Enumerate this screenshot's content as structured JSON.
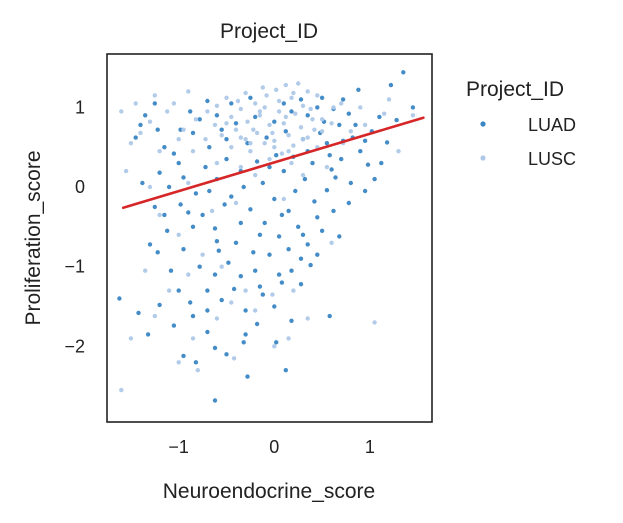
{
  "chart_data": {
    "type": "scatter",
    "title": "Project_ID",
    "xlabel": "Neuroendocrine_score",
    "ylabel": "Proliferation_score",
    "xlim": [
      -1.75,
      1.65
    ],
    "ylim": [
      -2.95,
      1.67
    ],
    "xticks": [
      -1,
      0,
      1
    ],
    "yticks": [
      -2,
      -1,
      0,
      1
    ],
    "xtick_labels": [
      "−1",
      "0",
      "1"
    ],
    "ytick_labels": [
      "−2",
      "−1",
      "0",
      "1"
    ],
    "grid": false,
    "legend": {
      "title": "Project_ID",
      "placement": "outside-right",
      "entries": [
        {
          "label": "LUAD",
          "color": "#3a86c4"
        },
        {
          "label": "LUSC",
          "color": "#adc8e8"
        }
      ]
    },
    "regression_line": {
      "color": "#d62728",
      "x": [
        -1.58,
        1.56
      ],
      "y": [
        -0.26,
        0.87
      ]
    },
    "series": [
      {
        "name": "LUAD",
        "color": "#3a86c4",
        "points": [
          [
            1.35,
            1.44
          ],
          [
            1.22,
            1.28
          ],
          [
            0.88,
            1.22
          ],
          [
            0.72,
            1.1
          ],
          [
            0.5,
            1.12
          ],
          [
            0.62,
            0.98
          ],
          [
            0.85,
            0.78
          ],
          [
            1.02,
            0.7
          ],
          [
            0.9,
            0.45
          ],
          [
            1.12,
            0.3
          ],
          [
            1.18,
            0.56
          ],
          [
            1.28,
            0.84
          ],
          [
            0.98,
            0.28
          ],
          [
            0.64,
            0.12
          ],
          [
            0.55,
            -0.04
          ],
          [
            0.78,
            -0.2
          ],
          [
            0.45,
            -0.38
          ],
          [
            0.5,
            -0.55
          ],
          [
            0.68,
            -0.62
          ],
          [
            0.35,
            -0.72
          ],
          [
            0.28,
            -0.9
          ],
          [
            0.18,
            -1.05
          ],
          [
            0.08,
            -1.2
          ],
          [
            0.28,
            -1.22
          ],
          [
            0.58,
            -1.62
          ],
          [
            0.18,
            -1.68
          ],
          [
            0.02,
            -1.95
          ],
          [
            -0.18,
            -1.72
          ],
          [
            -0.32,
            -1.95
          ],
          [
            -0.28,
            -2.38
          ],
          [
            0.12,
            -2.3
          ],
          [
            -0.62,
            -2.68
          ],
          [
            -0.82,
            -2.2
          ],
          [
            -0.95,
            -2.12
          ],
          [
            -0.62,
            -2.02
          ],
          [
            -0.7,
            -1.82
          ],
          [
            -0.85,
            -1.62
          ],
          [
            -1.05,
            -1.74
          ],
          [
            -1.2,
            -1.48
          ],
          [
            -1.32,
            -1.85
          ],
          [
            -1.42,
            -1.58
          ],
          [
            -1.62,
            -1.4
          ],
          [
            -1.08,
            -1.05
          ],
          [
            -1.22,
            -0.82
          ],
          [
            -1.3,
            -0.72
          ],
          [
            -1.12,
            -0.55
          ],
          [
            -1.25,
            -0.25
          ],
          [
            -1.38,
            0.05
          ],
          [
            -1.2,
            0.18
          ],
          [
            -1.05,
            0.42
          ],
          [
            -1.22,
            0.72
          ],
          [
            -1.35,
            0.9
          ],
          [
            -1.45,
            0.62
          ],
          [
            -1.25,
            1.05
          ],
          [
            -0.95,
            0.12
          ],
          [
            -0.82,
            -0.08
          ],
          [
            -0.75,
            -0.35
          ],
          [
            -0.9,
            -0.32
          ],
          [
            -0.62,
            -0.52
          ],
          [
            -0.58,
            -0.8
          ],
          [
            -0.48,
            -0.95
          ],
          [
            -0.62,
            -1.1
          ],
          [
            -0.42,
            -1.28
          ],
          [
            -0.55,
            -1.42
          ],
          [
            -0.3,
            -1.55
          ],
          [
            -0.12,
            -1.35
          ],
          [
            -0.2,
            -1.05
          ],
          [
            -0.05,
            -0.85
          ],
          [
            0.05,
            -0.62
          ],
          [
            -0.1,
            -0.45
          ],
          [
            -0.25,
            -0.28
          ],
          [
            0.0,
            -0.15
          ],
          [
            0.15,
            -0.3
          ],
          [
            0.22,
            -0.05
          ],
          [
            0.32,
            0.1
          ],
          [
            0.1,
            0.2
          ],
          [
            -0.12,
            0.05
          ],
          [
            -0.32,
            0.0
          ],
          [
            -0.45,
            -0.12
          ],
          [
            -0.6,
            0.1
          ],
          [
            -0.72,
            0.25
          ],
          [
            -0.5,
            0.35
          ],
          [
            -0.35,
            0.2
          ],
          [
            -0.18,
            0.32
          ],
          [
            0.02,
            0.4
          ],
          [
            0.2,
            0.38
          ],
          [
            0.4,
            0.3
          ],
          [
            0.58,
            0.4
          ],
          [
            0.72,
            0.58
          ],
          [
            0.48,
            0.68
          ],
          [
            0.3,
            0.6
          ],
          [
            0.12,
            0.7
          ],
          [
            -0.08,
            0.62
          ],
          [
            -0.28,
            0.55
          ],
          [
            -0.5,
            0.6
          ],
          [
            -0.68,
            0.5
          ],
          [
            -0.85,
            0.68
          ],
          [
            -0.78,
            0.85
          ],
          [
            -0.6,
            0.9
          ],
          [
            -0.4,
            0.8
          ],
          [
            -0.2,
            0.88
          ],
          [
            0.0,
            0.82
          ],
          [
            0.18,
            0.95
          ],
          [
            0.35,
            0.9
          ],
          [
            0.52,
            0.82
          ],
          [
            0.68,
            0.78
          ],
          [
            0.82,
            0.62
          ],
          [
            0.95,
            0.58
          ],
          [
            0.6,
            0.22
          ],
          [
            0.42,
            -0.18
          ],
          [
            0.25,
            -0.5
          ],
          [
            0.08,
            -0.35
          ],
          [
            -0.15,
            -0.6
          ],
          [
            -0.35,
            -0.45
          ],
          [
            -0.52,
            -0.22
          ],
          [
            -0.68,
            -0.05
          ],
          [
            -0.85,
            -0.5
          ],
          [
            -0.95,
            -0.78
          ],
          [
            -0.78,
            -1.0
          ],
          [
            -0.7,
            -1.3
          ],
          [
            -0.88,
            -1.45
          ],
          [
            -0.35,
            -1.12
          ],
          [
            -0.15,
            -1.25
          ],
          [
            0.05,
            -1.1
          ],
          [
            0.15,
            -0.78
          ],
          [
            0.3,
            -0.6
          ],
          [
            0.45,
            -0.85
          ],
          [
            0.62,
            -0.3
          ],
          [
            0.8,
            0.05
          ],
          [
            1.05,
            0.1
          ],
          [
            0.95,
            -0.05
          ],
          [
            -1.0,
            0.3
          ],
          [
            -1.15,
            0.5
          ],
          [
            -0.88,
            0.95
          ],
          [
            -0.7,
            1.08
          ],
          [
            -0.45,
            1.05
          ],
          [
            -0.25,
            1.12
          ],
          [
            0.1,
            1.05
          ],
          [
            0.28,
            1.1
          ],
          [
            0.45,
            1.0
          ],
          [
            0.78,
            0.92
          ],
          [
            1.1,
            0.88
          ],
          [
            1.45,
            1.0
          ],
          [
            -1.4,
            0.78
          ],
          [
            -0.98,
            0.72
          ],
          [
            -0.55,
            0.72
          ],
          [
            -0.05,
            0.25
          ],
          [
            0.35,
            0.45
          ],
          [
            -0.4,
            -0.7
          ],
          [
            -0.22,
            -0.82
          ],
          [
            0.38,
            -0.98
          ],
          [
            -0.6,
            -0.68
          ],
          [
            -0.98,
            -0.22
          ],
          [
            -1.1,
            0.0
          ],
          [
            0.55,
            0.55
          ],
          [
            0.7,
            0.35
          ],
          [
            -0.3,
            -1.85
          ],
          [
            -0.5,
            -2.1
          ],
          [
            0.0,
            -1.5
          ],
          [
            -0.7,
            -1.55
          ],
          [
            -1.0,
            -1.3
          ],
          [
            -1.15,
            -0.35
          ]
        ]
      },
      {
        "name": "LUSC",
        "color": "#adc8e8",
        "points": [
          [
            0.12,
            1.28
          ],
          [
            0.02,
            1.22
          ],
          [
            -0.08,
            1.15
          ],
          [
            0.18,
            1.12
          ],
          [
            -0.2,
            1.05
          ],
          [
            0.3,
            1.02
          ],
          [
            -0.35,
            0.98
          ],
          [
            0.05,
            0.95
          ],
          [
            0.22,
            0.92
          ],
          [
            -0.15,
            0.9
          ],
          [
            -0.45,
            0.88
          ],
          [
            0.4,
            0.85
          ],
          [
            -0.28,
            0.82
          ],
          [
            0.1,
            0.8
          ],
          [
            -0.05,
            0.78
          ],
          [
            0.28,
            0.75
          ],
          [
            -0.4,
            0.72
          ],
          [
            0.5,
            0.7
          ],
          [
            -0.18,
            0.68
          ],
          [
            0.15,
            0.65
          ],
          [
            -0.55,
            0.65
          ],
          [
            0.35,
            0.62
          ],
          [
            -0.3,
            0.6
          ],
          [
            0.0,
            0.58
          ],
          [
            -0.1,
            0.55
          ],
          [
            0.2,
            0.52
          ],
          [
            -0.45,
            0.5
          ],
          [
            0.45,
            0.5
          ],
          [
            -0.25,
            0.45
          ],
          [
            0.08,
            0.42
          ],
          [
            -0.62,
            0.78
          ],
          [
            0.6,
            0.8
          ],
          [
            -0.7,
            0.95
          ],
          [
            0.7,
            1.05
          ],
          [
            -0.5,
            1.12
          ],
          [
            0.45,
            1.15
          ],
          [
            -0.3,
            1.18
          ],
          [
            0.35,
            1.2
          ],
          [
            -0.12,
            1.25
          ],
          [
            0.25,
            1.3
          ],
          [
            -0.82,
            0.85
          ],
          [
            -0.95,
            0.72
          ],
          [
            0.8,
            0.7
          ],
          [
            -1.12,
            0.95
          ],
          [
            -1.3,
            0.82
          ],
          [
            -1.4,
            0.68
          ],
          [
            -1.5,
            0.55
          ],
          [
            -1.55,
            0.2
          ],
          [
            -1.25,
            1.15
          ],
          [
            -1.05,
            1.05
          ],
          [
            -0.9,
            1.2
          ],
          [
            0.9,
            1.0
          ],
          [
            1.15,
            0.92
          ],
          [
            1.3,
            0.45
          ],
          [
            1.45,
            0.9
          ],
          [
            -0.05,
            0.35
          ],
          [
            0.18,
            0.3
          ],
          [
            -0.35,
            0.25
          ],
          [
            -0.6,
            0.3
          ],
          [
            0.55,
            0.25
          ],
          [
            -0.2,
            0.15
          ],
          [
            0.3,
            0.15
          ],
          [
            -0.9,
            0.05
          ],
          [
            -1.3,
            0.0
          ],
          [
            -0.4,
            -0.2
          ],
          [
            0.1,
            -0.15
          ],
          [
            -1.0,
            -0.6
          ],
          [
            -1.2,
            -0.35
          ],
          [
            -0.75,
            -0.85
          ],
          [
            0.6,
            -0.7
          ],
          [
            -1.35,
            -1.05
          ],
          [
            -1.1,
            -1.3
          ],
          [
            -0.45,
            -1.45
          ],
          [
            0.2,
            -1.3
          ],
          [
            -0.02,
            -1.35
          ],
          [
            -1.25,
            -1.62
          ],
          [
            -0.85,
            -1.9
          ],
          [
            -1.0,
            -2.2
          ],
          [
            -0.8,
            -2.3
          ],
          [
            -0.6,
            -1.65
          ],
          [
            0.0,
            -2.0
          ],
          [
            -0.42,
            -2.15
          ],
          [
            -1.5,
            -1.9
          ],
          [
            -1.6,
            -2.55
          ],
          [
            1.05,
            -1.7
          ],
          [
            0.35,
            -1.65
          ],
          [
            0.15,
            -1.9
          ],
          [
            -0.3,
            -1.3
          ],
          [
            -0.15,
            0.95
          ],
          [
            0.05,
            1.08
          ],
          [
            -0.38,
            1.08
          ],
          [
            0.38,
            0.98
          ],
          [
            -0.6,
            1.02
          ],
          [
            0.62,
            1.0
          ],
          [
            -0.22,
            0.72
          ],
          [
            0.12,
            0.88
          ],
          [
            -0.5,
            0.8
          ],
          [
            0.5,
            0.85
          ],
          [
            -0.02,
            0.68
          ],
          [
            0.3,
            0.6
          ],
          [
            -0.35,
            0.62
          ],
          [
            0.42,
            0.72
          ],
          [
            -0.1,
            1.0
          ],
          [
            0.2,
            1.18
          ],
          [
            -0.25,
            0.55
          ],
          [
            0.0,
            0.5
          ],
          [
            0.15,
            0.45
          ],
          [
            -0.72,
            0.6
          ],
          [
            0.72,
            0.55
          ],
          [
            -0.85,
            0.45
          ],
          [
            -1.0,
            0.6
          ],
          [
            0.95,
            0.78
          ],
          [
            1.2,
            1.1
          ],
          [
            -1.6,
            0.95
          ],
          [
            -1.45,
            1.05
          ],
          [
            -1.2,
            0.45
          ],
          [
            -0.65,
            -0.3
          ],
          [
            -0.55,
            -1.0
          ],
          [
            -0.9,
            -1.1
          ],
          [
            -0.2,
            -1.55
          ]
        ]
      }
    ]
  }
}
